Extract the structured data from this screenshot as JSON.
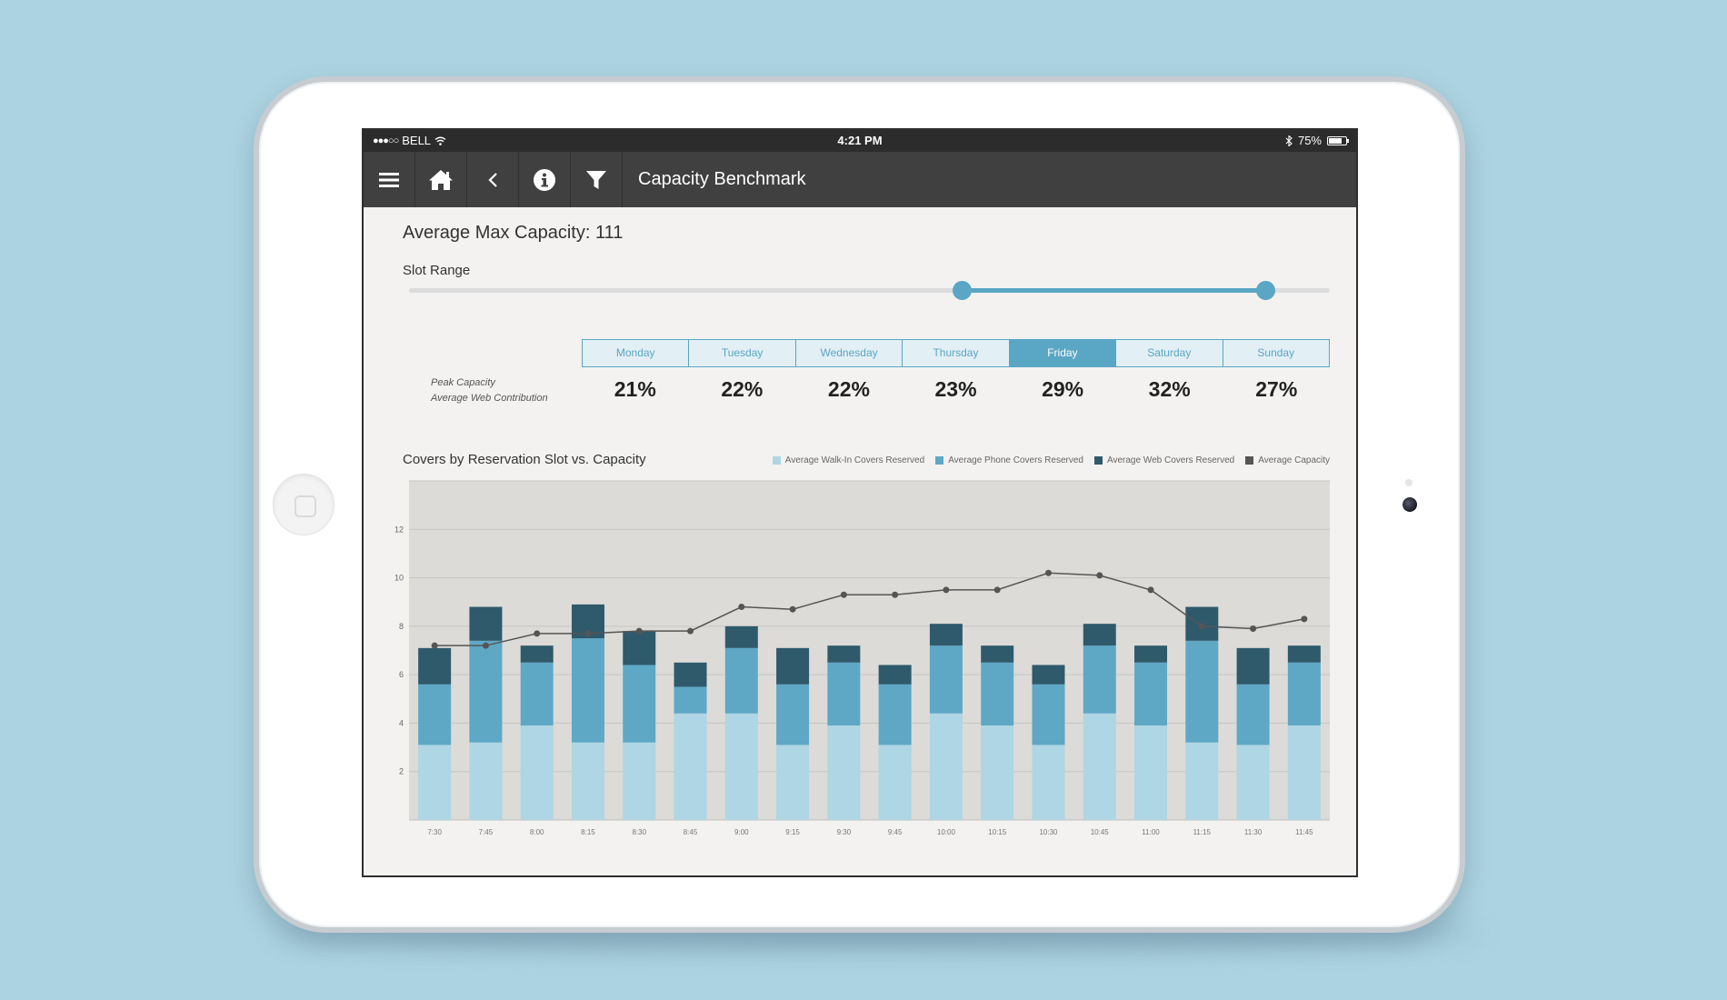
{
  "status": {
    "carrier": "BELL",
    "time": "4:21 PM",
    "battery": "75%",
    "battery_level": 0.75
  },
  "nav": {
    "title": "Capacity Benchmark",
    "icons": [
      "menu-icon",
      "home-icon",
      "back-icon",
      "info-icon",
      "filter-icon"
    ]
  },
  "summary": {
    "avg_max_capacity": "Average Max Capacity: 111"
  },
  "slot_range": {
    "label": "Slot Range",
    "start": 0.6,
    "end": 0.93
  },
  "days": {
    "peak_label": "Peak Capacity",
    "web_label": "Average Web Contribution",
    "selected": "Friday",
    "items": [
      {
        "name": "Monday",
        "value": "21%"
      },
      {
        "name": "Tuesday",
        "value": "22%"
      },
      {
        "name": "Wednesday",
        "value": "22%"
      },
      {
        "name": "Thursday",
        "value": "23%"
      },
      {
        "name": "Friday",
        "value": "29%"
      },
      {
        "name": "Saturday",
        "value": "32%"
      },
      {
        "name": "Sunday",
        "value": "27%"
      }
    ]
  },
  "colors": {
    "accent": "#5aa6c5",
    "walk_in": "#aed6e4",
    "phone": "#5ea8c6",
    "web": "#2f5a6c",
    "capacity": "#555555",
    "nav": "#404040"
  },
  "chart_data": {
    "type": "bar",
    "stacked": true,
    "title": "Covers by Reservation Slot vs. Capacity",
    "categories": [
      "7:30",
      "7:45",
      "8:00",
      "8:15",
      "8:30",
      "8:45",
      "9:00",
      "9:15",
      "9:30",
      "9:45",
      "10:00",
      "10:15",
      "10:30",
      "10:45",
      "11:00",
      "11:15",
      "11:30",
      "11:45"
    ],
    "series": [
      {
        "name": "Average Walk-In Covers Reserved",
        "values": [
          3.1,
          3.2,
          3.9,
          3.2,
          3.2,
          4.4,
          4.4,
          3.1,
          3.9,
          3.1,
          4.4,
          3.9,
          3.1,
          4.4,
          3.9,
          3.2,
          3.1,
          3.9
        ]
      },
      {
        "name": "Average Phone Covers Reserved",
        "values": [
          2.5,
          4.2,
          2.6,
          4.3,
          3.2,
          1.1,
          2.7,
          2.5,
          2.6,
          2.5,
          2.8,
          2.6,
          2.5,
          2.8,
          2.6,
          4.2,
          2.5,
          2.6
        ]
      },
      {
        "name": "Average Web Covers Reserved",
        "values": [
          1.5,
          1.4,
          0.7,
          1.4,
          1.4,
          1.0,
          0.9,
          1.5,
          0.7,
          0.8,
          0.9,
          0.7,
          0.8,
          0.9,
          0.7,
          1.4,
          1.5,
          0.7
        ]
      }
    ],
    "line": {
      "name": "Average Capacity",
      "values": [
        7.2,
        7.2,
        7.7,
        7.7,
        7.8,
        7.8,
        8.8,
        8.7,
        9.3,
        9.3,
        9.5,
        9.5,
        10.2,
        10.1,
        9.5,
        8.0,
        7.9,
        8.3
      ]
    },
    "yticks": [
      2,
      4,
      6,
      8,
      10,
      12
    ],
    "ylim": [
      0,
      14
    ],
    "grid": true,
    "legend": "top-right"
  }
}
